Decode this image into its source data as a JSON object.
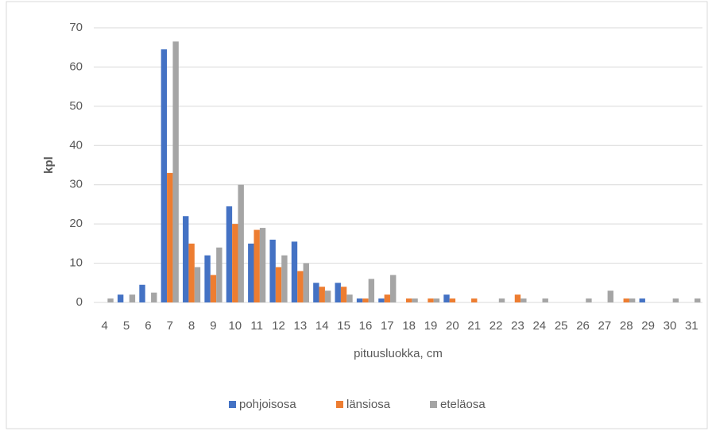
{
  "chart_data": {
    "type": "bar",
    "categories": [
      "4",
      "5",
      "6",
      "7",
      "8",
      "9",
      "10",
      "11",
      "12",
      "13",
      "14",
      "15",
      "16",
      "17",
      "18",
      "19",
      "20",
      "21",
      "22",
      "23",
      "24",
      "25",
      "26",
      "27",
      "28",
      "29",
      "30",
      "31"
    ],
    "series": [
      {
        "name": "pohjoisosa",
        "color": "#4472c4",
        "values": [
          0,
          2,
          4.5,
          64.5,
          22,
          12,
          24.5,
          15,
          16,
          15.5,
          5,
          5,
          1,
          1,
          0,
          0,
          2,
          0,
          0,
          0,
          0,
          0,
          0,
          0,
          0,
          1,
          0,
          0
        ]
      },
      {
        "name": "länsiosa",
        "color": "#ed7d31",
        "values": [
          0,
          0,
          0,
          33,
          15,
          7,
          20,
          18.5,
          9,
          8,
          4,
          4,
          1,
          2,
          1,
          1,
          1,
          1,
          0,
          2,
          0,
          0,
          0,
          0,
          1,
          0,
          0,
          0
        ]
      },
      {
        "name": "eteläosa",
        "color": "#a5a5a5",
        "values": [
          1,
          2,
          2.5,
          66.5,
          9,
          14,
          30,
          19,
          12,
          10,
          3,
          2,
          6,
          7,
          1,
          1,
          0,
          0,
          1,
          1,
          1,
          0,
          1,
          3,
          1,
          0,
          1,
          1
        ]
      }
    ],
    "y_label": "kpl",
    "x_label": "pituusluokka, cm",
    "ylim": [
      0,
      70
    ],
    "yticks": [
      0,
      10,
      20,
      30,
      40,
      50,
      60,
      70
    ],
    "grid": true,
    "legend": "bottom"
  }
}
